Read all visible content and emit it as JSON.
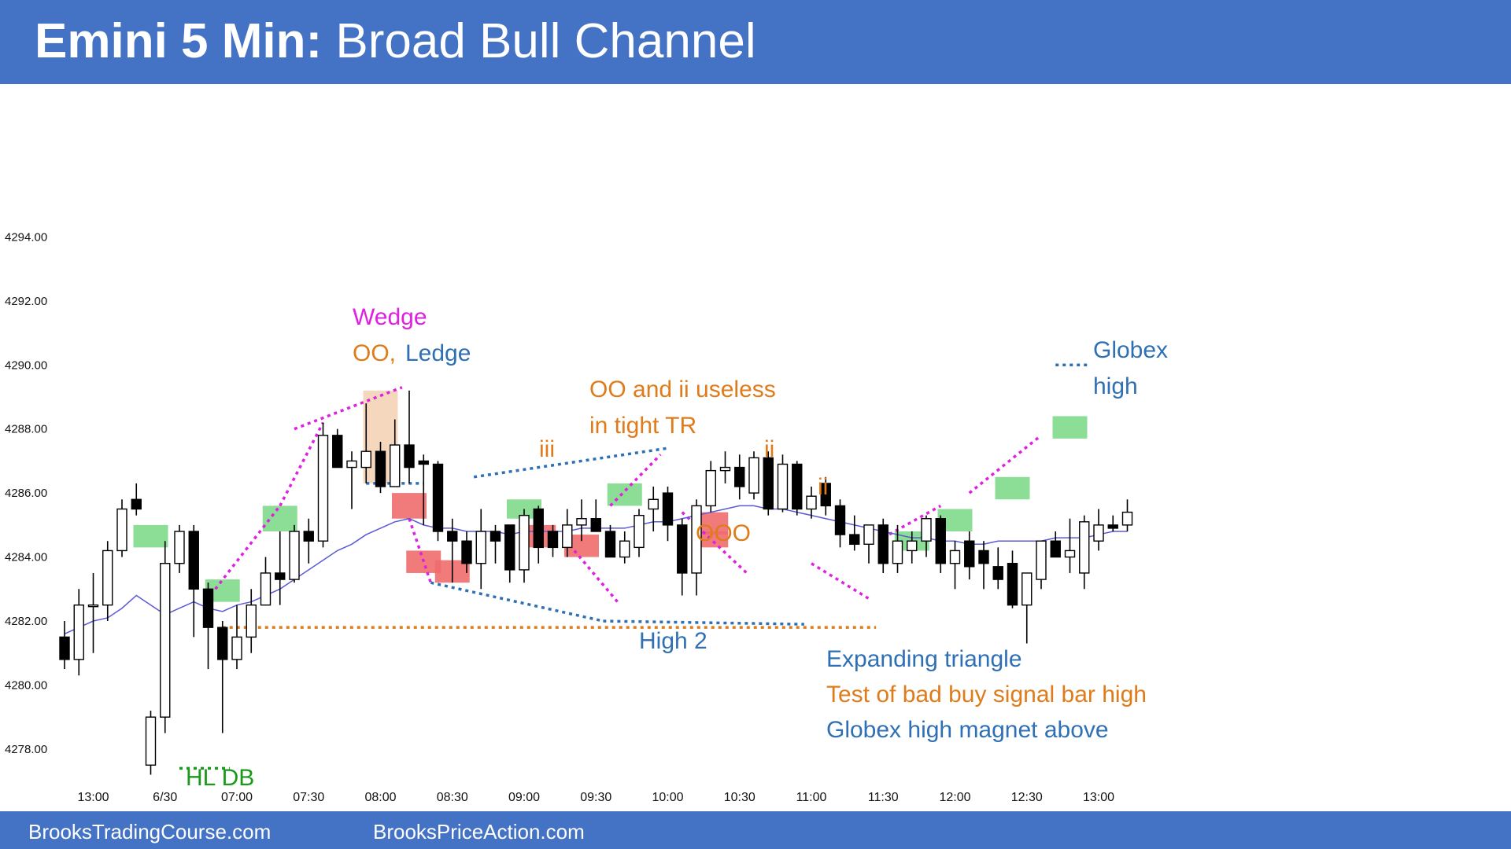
{
  "header": {
    "title_bold": "Emini 5 Min:",
    "title_rest": " Broad Bull Channel"
  },
  "footer": {
    "link_left": "BrooksTradingCourse.com",
    "link_right": "BrooksPriceAction.com"
  },
  "colors": {
    "header_bg": "#4472c4",
    "bull_bar": "#ffffff",
    "bear_bar": "#000000",
    "ema": "#5a5ad6",
    "green_box": "#7fd98a",
    "red_box": "#ef6b6b",
    "magenta": "#e020e0",
    "orange": "#e07b1a",
    "blue": "#2f70b4",
    "green_text": "#1a9a1a"
  },
  "chart_data": {
    "type": "candlestick",
    "title": "Emini 5 Min: Broad Bull Channel",
    "ylim": [
      4276.5,
      4294.5
    ],
    "y_ticks": [
      "4278.00",
      "4280.00",
      "4282.00",
      "4284.00",
      "4286.00",
      "4288.00",
      "4290.00",
      "4292.00",
      "4294.00"
    ],
    "x_ticks": [
      "13:00",
      "6/30",
      "07:00",
      "07:30",
      "08:00",
      "08:30",
      "09:00",
      "09:30",
      "10:00",
      "10:30",
      "11:00",
      "11:30",
      "12:00",
      "12:30",
      "13:00"
    ],
    "x_tick_bar_index": [
      2,
      7,
      12,
      17,
      22,
      27,
      32,
      37,
      42,
      47,
      52,
      57,
      62,
      67,
      72
    ],
    "bars": [
      {
        "o": 4281.5,
        "h": 4282.0,
        "l": 4280.5,
        "c": 4280.8
      },
      {
        "o": 4280.8,
        "h": 4283.0,
        "l": 4280.3,
        "c": 4282.5
      },
      {
        "o": 4282.5,
        "h": 4283.5,
        "l": 4281.0,
        "c": 4282.5
      },
      {
        "o": 4282.5,
        "h": 4284.5,
        "l": 4282.0,
        "c": 4284.2
      },
      {
        "o": 4284.2,
        "h": 4285.8,
        "l": 4284.0,
        "c": 4285.5
      },
      {
        "o": 4285.8,
        "h": 4286.3,
        "l": 4285.3,
        "c": 4285.5
      },
      {
        "o": 4277.5,
        "h": 4279.2,
        "l": 4277.2,
        "c": 4279.0
      },
      {
        "o": 4279.0,
        "h": 4284.5,
        "l": 4278.5,
        "c": 4283.8
      },
      {
        "o": 4283.8,
        "h": 4285.0,
        "l": 4283.5,
        "c": 4284.8
      },
      {
        "o": 4284.8,
        "h": 4285.0,
        "l": 4281.5,
        "c": 4283.0
      },
      {
        "o": 4283.0,
        "h": 4283.2,
        "l": 4280.5,
        "c": 4281.8
      },
      {
        "o": 4281.8,
        "h": 4282.0,
        "l": 4278.5,
        "c": 4280.8
      },
      {
        "o": 4280.8,
        "h": 4282.5,
        "l": 4280.5,
        "c": 4281.5
      },
      {
        "o": 4281.5,
        "h": 4283.0,
        "l": 4281.0,
        "c": 4282.5
      },
      {
        "o": 4282.5,
        "h": 4284.0,
        "l": 4282.5,
        "c": 4283.5
      },
      {
        "o": 4283.5,
        "h": 4284.8,
        "l": 4282.5,
        "c": 4283.3
      },
      {
        "o": 4283.3,
        "h": 4285.0,
        "l": 4283.2,
        "c": 4284.8
      },
      {
        "o": 4284.8,
        "h": 4285.2,
        "l": 4283.8,
        "c": 4284.5
      },
      {
        "o": 4284.5,
        "h": 4288.2,
        "l": 4284.3,
        "c": 4287.8
      },
      {
        "o": 4287.8,
        "h": 4288.0,
        "l": 4286.8,
        "c": 4286.8
      },
      {
        "o": 4286.8,
        "h": 4287.3,
        "l": 4285.5,
        "c": 4287.0
      },
      {
        "o": 4286.8,
        "h": 4288.8,
        "l": 4286.3,
        "c": 4287.3
      },
      {
        "o": 4287.3,
        "h": 4287.6,
        "l": 4286.0,
        "c": 4286.2
      },
      {
        "o": 4286.2,
        "h": 4288.3,
        "l": 4286.2,
        "c": 4287.5
      },
      {
        "o": 4287.5,
        "h": 4289.2,
        "l": 4286.3,
        "c": 4286.8
      },
      {
        "o": 4287.0,
        "h": 4287.2,
        "l": 4285.0,
        "c": 4286.9
      },
      {
        "o": 4286.9,
        "h": 4287.0,
        "l": 4284.5,
        "c": 4284.8
      },
      {
        "o": 4284.8,
        "h": 4285.2,
        "l": 4283.2,
        "c": 4284.5
      },
      {
        "o": 4284.5,
        "h": 4284.8,
        "l": 4283.5,
        "c": 4283.8
      },
      {
        "o": 4283.8,
        "h": 4285.5,
        "l": 4283.0,
        "c": 4284.8
      },
      {
        "o": 4284.8,
        "h": 4285.0,
        "l": 4283.8,
        "c": 4284.5
      },
      {
        "o": 4285.0,
        "h": 4285.0,
        "l": 4283.2,
        "c": 4283.6
      },
      {
        "o": 4283.6,
        "h": 4285.5,
        "l": 4283.2,
        "c": 4285.3
      },
      {
        "o": 4285.5,
        "h": 4285.6,
        "l": 4283.8,
        "c": 4284.3
      },
      {
        "o": 4284.8,
        "h": 4285.0,
        "l": 4284.0,
        "c": 4284.3
      },
      {
        "o": 4284.3,
        "h": 4285.5,
        "l": 4284.0,
        "c": 4285.0
      },
      {
        "o": 4285.0,
        "h": 4285.8,
        "l": 4284.5,
        "c": 4285.2
      },
      {
        "o": 4285.2,
        "h": 4285.8,
        "l": 4284.8,
        "c": 4284.8
      },
      {
        "o": 4284.8,
        "h": 4285.0,
        "l": 4284.0,
        "c": 4284.0
      },
      {
        "o": 4284.0,
        "h": 4284.8,
        "l": 4283.8,
        "c": 4284.5
      },
      {
        "o": 4284.3,
        "h": 4285.5,
        "l": 4284.0,
        "c": 4285.3
      },
      {
        "o": 4285.5,
        "h": 4286.2,
        "l": 4284.8,
        "c": 4285.8
      },
      {
        "o": 4286.0,
        "h": 4286.2,
        "l": 4284.5,
        "c": 4285.0
      },
      {
        "o": 4285.0,
        "h": 4285.2,
        "l": 4282.8,
        "c": 4283.5
      },
      {
        "o": 4283.5,
        "h": 4285.8,
        "l": 4282.8,
        "c": 4285.6
      },
      {
        "o": 4285.6,
        "h": 4287.0,
        "l": 4285.4,
        "c": 4286.7
      },
      {
        "o": 4286.7,
        "h": 4287.3,
        "l": 4286.3,
        "c": 4286.8
      },
      {
        "o": 4286.8,
        "h": 4287.2,
        "l": 4285.8,
        "c": 4286.2
      },
      {
        "o": 4286.0,
        "h": 4287.3,
        "l": 4285.8,
        "c": 4287.1
      },
      {
        "o": 4287.1,
        "h": 4287.3,
        "l": 4285.3,
        "c": 4285.5
      },
      {
        "o": 4285.5,
        "h": 4287.2,
        "l": 4285.4,
        "c": 4286.9
      },
      {
        "o": 4286.9,
        "h": 4287.0,
        "l": 4285.3,
        "c": 4285.5
      },
      {
        "o": 4285.5,
        "h": 4286.2,
        "l": 4285.2,
        "c": 4285.9
      },
      {
        "o": 4286.3,
        "h": 4286.5,
        "l": 4285.3,
        "c": 4285.6
      },
      {
        "o": 4285.6,
        "h": 4285.8,
        "l": 4284.3,
        "c": 4284.7
      },
      {
        "o": 4284.7,
        "h": 4285.3,
        "l": 4284.2,
        "c": 4284.4
      },
      {
        "o": 4284.4,
        "h": 4285.0,
        "l": 4283.8,
        "c": 4285.0
      },
      {
        "o": 4285.0,
        "h": 4285.2,
        "l": 4283.5,
        "c": 4283.8
      },
      {
        "o": 4283.8,
        "h": 4285.0,
        "l": 4283.5,
        "c": 4284.5
      },
      {
        "o": 4284.2,
        "h": 4284.8,
        "l": 4283.8,
        "c": 4284.5
      },
      {
        "o": 4284.5,
        "h": 4285.3,
        "l": 4284.0,
        "c": 4285.2
      },
      {
        "o": 4285.2,
        "h": 4285.3,
        "l": 4283.5,
        "c": 4283.8
      },
      {
        "o": 4283.8,
        "h": 4284.5,
        "l": 4283.0,
        "c": 4284.2
      },
      {
        "o": 4284.5,
        "h": 4284.8,
        "l": 4283.3,
        "c": 4283.7
      },
      {
        "o": 4284.2,
        "h": 4284.5,
        "l": 4283.0,
        "c": 4283.8
      },
      {
        "o": 4283.7,
        "h": 4284.3,
        "l": 4283.0,
        "c": 4283.3
      },
      {
        "o": 4283.8,
        "h": 4284.2,
        "l": 4282.4,
        "c": 4282.5
      },
      {
        "o": 4282.5,
        "h": 4283.5,
        "l": 4281.3,
        "c": 4283.5
      },
      {
        "o": 4283.3,
        "h": 4284.5,
        "l": 4283.0,
        "c": 4284.5
      },
      {
        "o": 4284.5,
        "h": 4284.8,
        "l": 4284.0,
        "c": 4284.0
      },
      {
        "o": 4284.0,
        "h": 4285.2,
        "l": 4283.5,
        "c": 4284.2
      },
      {
        "o": 4283.5,
        "h": 4285.3,
        "l": 4283.0,
        "c": 4285.1
      },
      {
        "o": 4284.5,
        "h": 4285.5,
        "l": 4284.2,
        "c": 4285.0
      },
      {
        "o": 4285.0,
        "h": 4285.3,
        "l": 4284.8,
        "c": 4284.9
      },
      {
        "o": 4285.0,
        "h": 4285.8,
        "l": 4284.8,
        "c": 4285.4
      }
    ],
    "ema": [
      4281.6,
      4281.8,
      4282.0,
      4282.1,
      4282.4,
      4282.8,
      4282.5,
      4282.2,
      4282.4,
      4282.6,
      4282.4,
      4282.3,
      4282.5,
      4282.6,
      4282.8,
      4283.0,
      4283.3,
      4283.6,
      4283.9,
      4284.2,
      4284.4,
      4284.7,
      4284.9,
      4285.1,
      4285.2,
      4285.0,
      4284.9,
      4284.9,
      4284.8,
      4284.8,
      4284.8,
      4284.7,
      4284.8,
      4284.8,
      4284.8,
      4284.8,
      4284.9,
      4284.9,
      4284.9,
      4284.9,
      4285.0,
      4285.1,
      4285.1,
      4285.2,
      4285.3,
      4285.4,
      4285.5,
      4285.6,
      4285.6,
      4285.5,
      4285.5,
      4285.4,
      4285.3,
      4285.2,
      4285.1,
      4285.0,
      4284.9,
      4284.8,
      4284.7,
      4284.6,
      4284.6,
      4284.5,
      4284.5,
      4284.4,
      4284.4,
      4284.5,
      4284.5,
      4284.5,
      4284.5,
      4284.6,
      4284.6,
      4284.6,
      4284.7,
      4284.8,
      4284.8
    ],
    "annotations": [
      {
        "text": "Wedge",
        "color": "magenta"
      },
      {
        "text": "OO,",
        "color": "orange"
      },
      {
        "text": "Ledge",
        "color": "blue"
      },
      {
        "text": "OO and ii useless",
        "color": "orange"
      },
      {
        "text": "in tight TR",
        "color": "orange"
      },
      {
        "text": "iii",
        "color": "orange"
      },
      {
        "text": "ii",
        "color": "orange"
      },
      {
        "text": "ii",
        "color": "orange"
      },
      {
        "text": "OOO",
        "color": "orange"
      },
      {
        "text": "High 2",
        "color": "blue"
      },
      {
        "text": "Expanding triangle",
        "color": "blue"
      },
      {
        "text": "Test of bad buy signal bar high",
        "color": "orange"
      },
      {
        "text": "Globex high magnet above",
        "color": "blue"
      },
      {
        "text": "Globex",
        "color": "blue"
      },
      {
        "text": "high",
        "color": "blue"
      },
      {
        "text": "HL DB",
        "color": "green"
      }
    ]
  }
}
